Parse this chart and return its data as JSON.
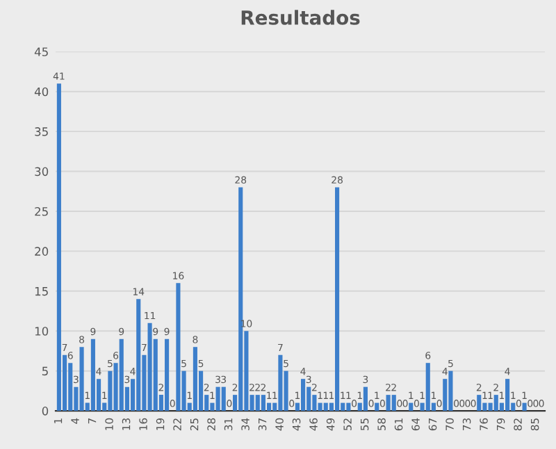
{
  "chart_data": {
    "type": "bar",
    "title": "Resultados",
    "categories": [
      "1",
      null,
      null,
      "4",
      null,
      null,
      "7",
      null,
      null,
      "10",
      null,
      null,
      "13",
      null,
      null,
      "16",
      null,
      null,
      "19",
      null,
      null,
      "22",
      null,
      null,
      "25",
      null,
      null,
      "28",
      null,
      null,
      "31",
      null,
      null,
      "34",
      null,
      null,
      "37",
      null,
      null,
      "40",
      null,
      null,
      "43",
      null,
      null,
      "46",
      null,
      null,
      "49",
      null,
      null,
      "52",
      null,
      null,
      "55",
      null,
      null,
      "58",
      null,
      null,
      "61",
      null,
      null,
      "64",
      null,
      null,
      "67",
      null,
      null,
      "70",
      null,
      null,
      "73",
      null,
      null,
      "76",
      null,
      null,
      "79",
      null,
      null,
      "82",
      null,
      null,
      "85",
      null
    ],
    "values": [
      41,
      7,
      6,
      3,
      8,
      1,
      9,
      4,
      1,
      5,
      6,
      9,
      3,
      4,
      14,
      7,
      11,
      9,
      2,
      9,
      0,
      16,
      5,
      1,
      8,
      5,
      2,
      1,
      3,
      3,
      0,
      2,
      28,
      10,
      2,
      2,
      2,
      1,
      1,
      7,
      5,
      0,
      1,
      4,
      3,
      2,
      1,
      1,
      1,
      28,
      1,
      1,
      0,
      1,
      3,
      0,
      1,
      0,
      2,
      2,
      0,
      0,
      1,
      0,
      1,
      6,
      1,
      0,
      4,
      5,
      0,
      0,
      0,
      0,
      2,
      1,
      1,
      2,
      1,
      4,
      1,
      0,
      1,
      0,
      0,
      0
    ],
    "color": "#3d7fcb",
    "ylim": [
      0,
      45
    ],
    "yticks": [
      0,
      5,
      10,
      15,
      20,
      25,
      30,
      35,
      40,
      45
    ],
    "grid": "y",
    "data_labels": true
  }
}
